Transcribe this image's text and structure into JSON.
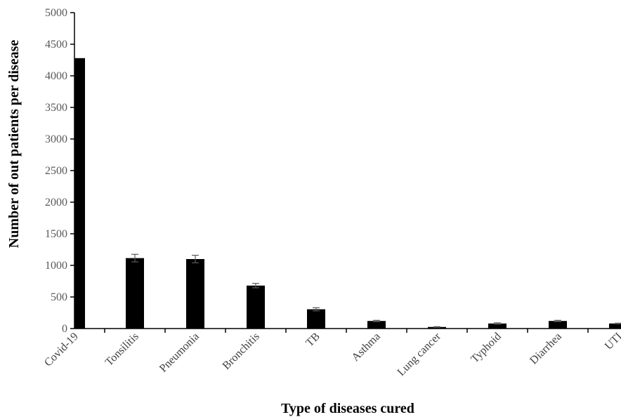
{
  "chart_data": {
    "type": "bar",
    "title": "",
    "xlabel": "Type of diseases cured",
    "ylabel": "Number of out patients per disease",
    "ylim": [
      0,
      5000
    ],
    "yticks": [
      0,
      500,
      1000,
      1500,
      2000,
      2500,
      3000,
      3500,
      4000,
      4500,
      5000
    ],
    "categories": [
      "Covid-19",
      "Tonsilitis",
      "Pneumonia",
      "Bronchitis",
      "TB",
      "Asthma",
      "Lung cancer",
      "Typhoid",
      "Diarrhea",
      "UTI"
    ],
    "values": [
      4280,
      1115,
      1100,
      680,
      305,
      120,
      25,
      80,
      120,
      80
    ],
    "errors": [
      0,
      60,
      60,
      35,
      25,
      10,
      5,
      10,
      10,
      5
    ],
    "grid": false,
    "legend": "none",
    "bar_color": "#000000",
    "error_bar_color": "#595959"
  }
}
